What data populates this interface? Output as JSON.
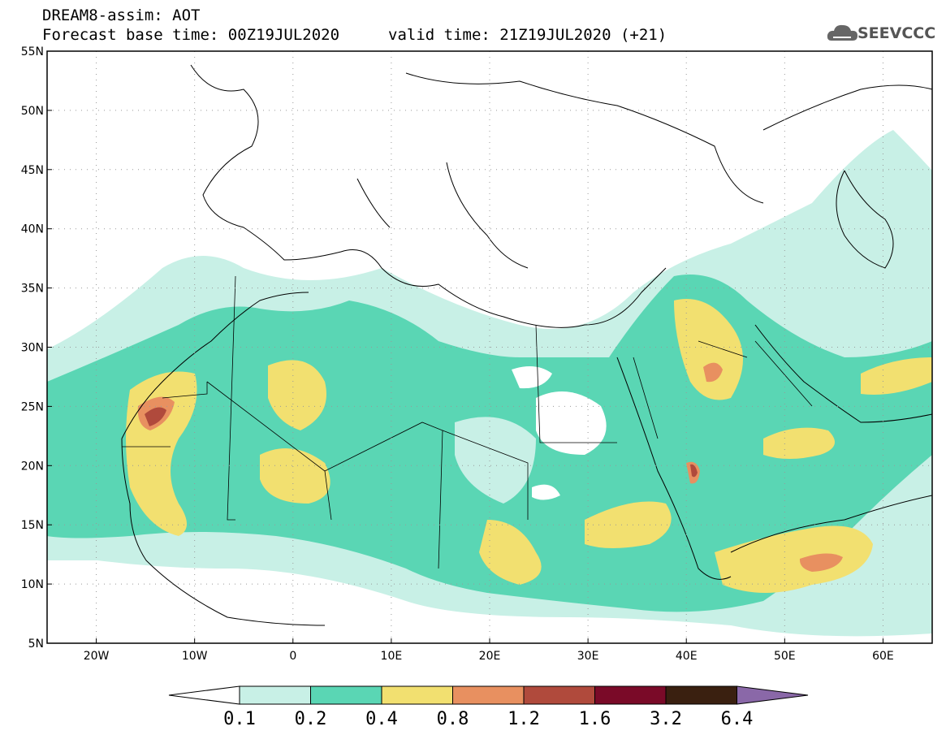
{
  "title": {
    "model": "DREAM8-assim: AOT",
    "base_time": "Forecast base time: 00Z19JUL2020",
    "valid_time": "valid time: 21Z19JUL2020 (+21)"
  },
  "logo": {
    "text": "SEEVCCC",
    "icon": "cloud-icon"
  },
  "axes": {
    "lon_ticks": [
      "20W",
      "10W",
      "0",
      "10E",
      "20E",
      "30E",
      "40E",
      "50E",
      "60E"
    ],
    "lat_ticks": [
      "55N",
      "50N",
      "45N",
      "40N",
      "35N",
      "30N",
      "25N",
      "20N",
      "15N",
      "10N",
      "5N"
    ],
    "lon_range": [
      -25,
      65
    ],
    "lat_range": [
      5,
      55
    ]
  },
  "colorbar": {
    "labels": [
      "0.1",
      "0.2",
      "0.4",
      "0.8",
      "1.2",
      "1.6",
      "3.2",
      "6.4"
    ],
    "colors": [
      "#c8f0e6",
      "#5ad6b4",
      "#f2e070",
      "#e89060",
      "#b04a3c",
      "#7a0a28",
      "#3a2010",
      "#8a68a8"
    ],
    "under_color": "#ffffff"
  },
  "colors": {
    "c1": "#c8f0e6",
    "c2": "#5ad6b4",
    "c3": "#f2e070",
    "c4": "#e89060",
    "c5": "#b04a3c"
  }
}
